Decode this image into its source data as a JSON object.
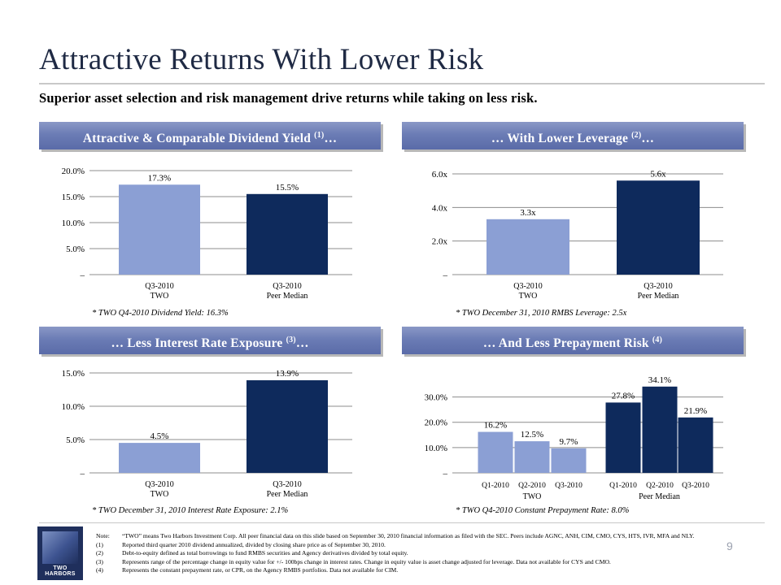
{
  "slide": {
    "title": "Attractive Returns With Lower Risk",
    "subtitle": "Superior asset selection and risk management drive returns while taking on less risk.",
    "page_number": "9"
  },
  "panels": {
    "dividend": {
      "header": "Attractive & Comparable Dividend Yield ",
      "sup": "(1)",
      "suffix": "…",
      "footnote": "* TWO Q4-2010 Dividend Yield: 16.3%"
    },
    "leverage": {
      "header": "… With Lower Leverage ",
      "sup": "(2)",
      "suffix": "…",
      "footnote": "* TWO December 31, 2010 RMBS Leverage: 2.5x"
    },
    "interest": {
      "header": "… Less Interest Rate Exposure ",
      "sup": "(3)",
      "suffix": "…",
      "footnote": "* TWO December 31, 2010 Interest Rate Exposure: 2.1%"
    },
    "prepay": {
      "header": "… And Less Prepayment Risk ",
      "sup": "(4)",
      "suffix": "",
      "footnote": "* TWO Q4-2010 Constant Prepayment Rate: 8.0%"
    }
  },
  "colors": {
    "two": "#8b9fd4",
    "peer": "#0e2a5c",
    "header": "#6b7cb5"
  },
  "chart_data": [
    {
      "id": "dividend",
      "type": "bar",
      "categories": [
        "Q3-2010\nTWO",
        "Q3-2010\nPeer Median"
      ],
      "values": [
        17.3,
        15.5
      ],
      "data_labels": [
        "17.3%",
        "15.5%"
      ],
      "y_ticks": [
        "20.0%",
        "15.0%",
        "10.0%",
        "5.0%",
        "–"
      ],
      "ylim": [
        0,
        20
      ],
      "grid": true
    },
    {
      "id": "leverage",
      "type": "bar",
      "categories": [
        "Q3-2010\nTWO",
        "Q3-2010\nPeer Median"
      ],
      "values": [
        3.3,
        5.6
      ],
      "data_labels": [
        "3.3x",
        "5.6x"
      ],
      "y_ticks": [
        "6.0x",
        "4.0x",
        "2.0x",
        "–"
      ],
      "ylim": [
        0,
        6
      ],
      "grid": true
    },
    {
      "id": "interest",
      "type": "bar",
      "categories": [
        "Q3-2010\nTWO",
        "Q3-2010\nPeer Median"
      ],
      "values": [
        4.5,
        13.9
      ],
      "data_labels": [
        "4.5%",
        "13.9%"
      ],
      "y_ticks": [
        "15.0%",
        "10.0%",
        "5.0%",
        "–"
      ],
      "ylim": [
        0,
        15
      ],
      "grid": true
    },
    {
      "id": "prepay",
      "type": "bar",
      "categories": [
        "Q1-2010",
        "Q2-2010",
        "Q3-2010",
        "Q1-2010",
        "Q2-2010",
        "Q3-2010"
      ],
      "groups": [
        "TWO",
        "Peer Median"
      ],
      "group_of": [
        0,
        0,
        0,
        1,
        1,
        1
      ],
      "values": [
        16.2,
        12.5,
        9.7,
        27.8,
        34.1,
        21.9
      ],
      "data_labels": [
        "16.2%",
        "12.5%",
        "9.7%",
        "27.8%",
        "34.1%",
        "21.9%"
      ],
      "y_ticks": [
        "30.0%",
        "20.0%",
        "10.0%",
        "–"
      ],
      "ylim": [
        0,
        35
      ],
      "grid": true
    }
  ],
  "notes": [
    {
      "key": "Note:",
      "text": "“TWO” means Two Harbors Investment Corp.  All peer financial data on this slide based on September 30, 2010 financial information as filed with the SEC.  Peers include AGNC, ANH, CIM, CMO, CYS, HTS, IVR, MFA and NLY."
    },
    {
      "key": "(1)",
      "text": "Reported third quarter 2010 dividend annualized, divided by closing share price as  of September 30, 2010."
    },
    {
      "key": "(2)",
      "text": "Debt-to-equity defined as total borrowings to fund RMBS securities and Agency derivatives divided by total equity."
    },
    {
      "key": "(3)",
      "text": "Represents range of the percentage change in equity value for +/- 100bps  change in interest rates. Change in equity value is asset change adjusted for leverage.  Data not available for CYS and CMO."
    },
    {
      "key": "(4)",
      "text": "Represents the constant prepayment rate, or CPR, on the Agency RMBS portfolios. Data not available for CIM."
    }
  ],
  "logo": {
    "text": "TWO HARBORS"
  }
}
